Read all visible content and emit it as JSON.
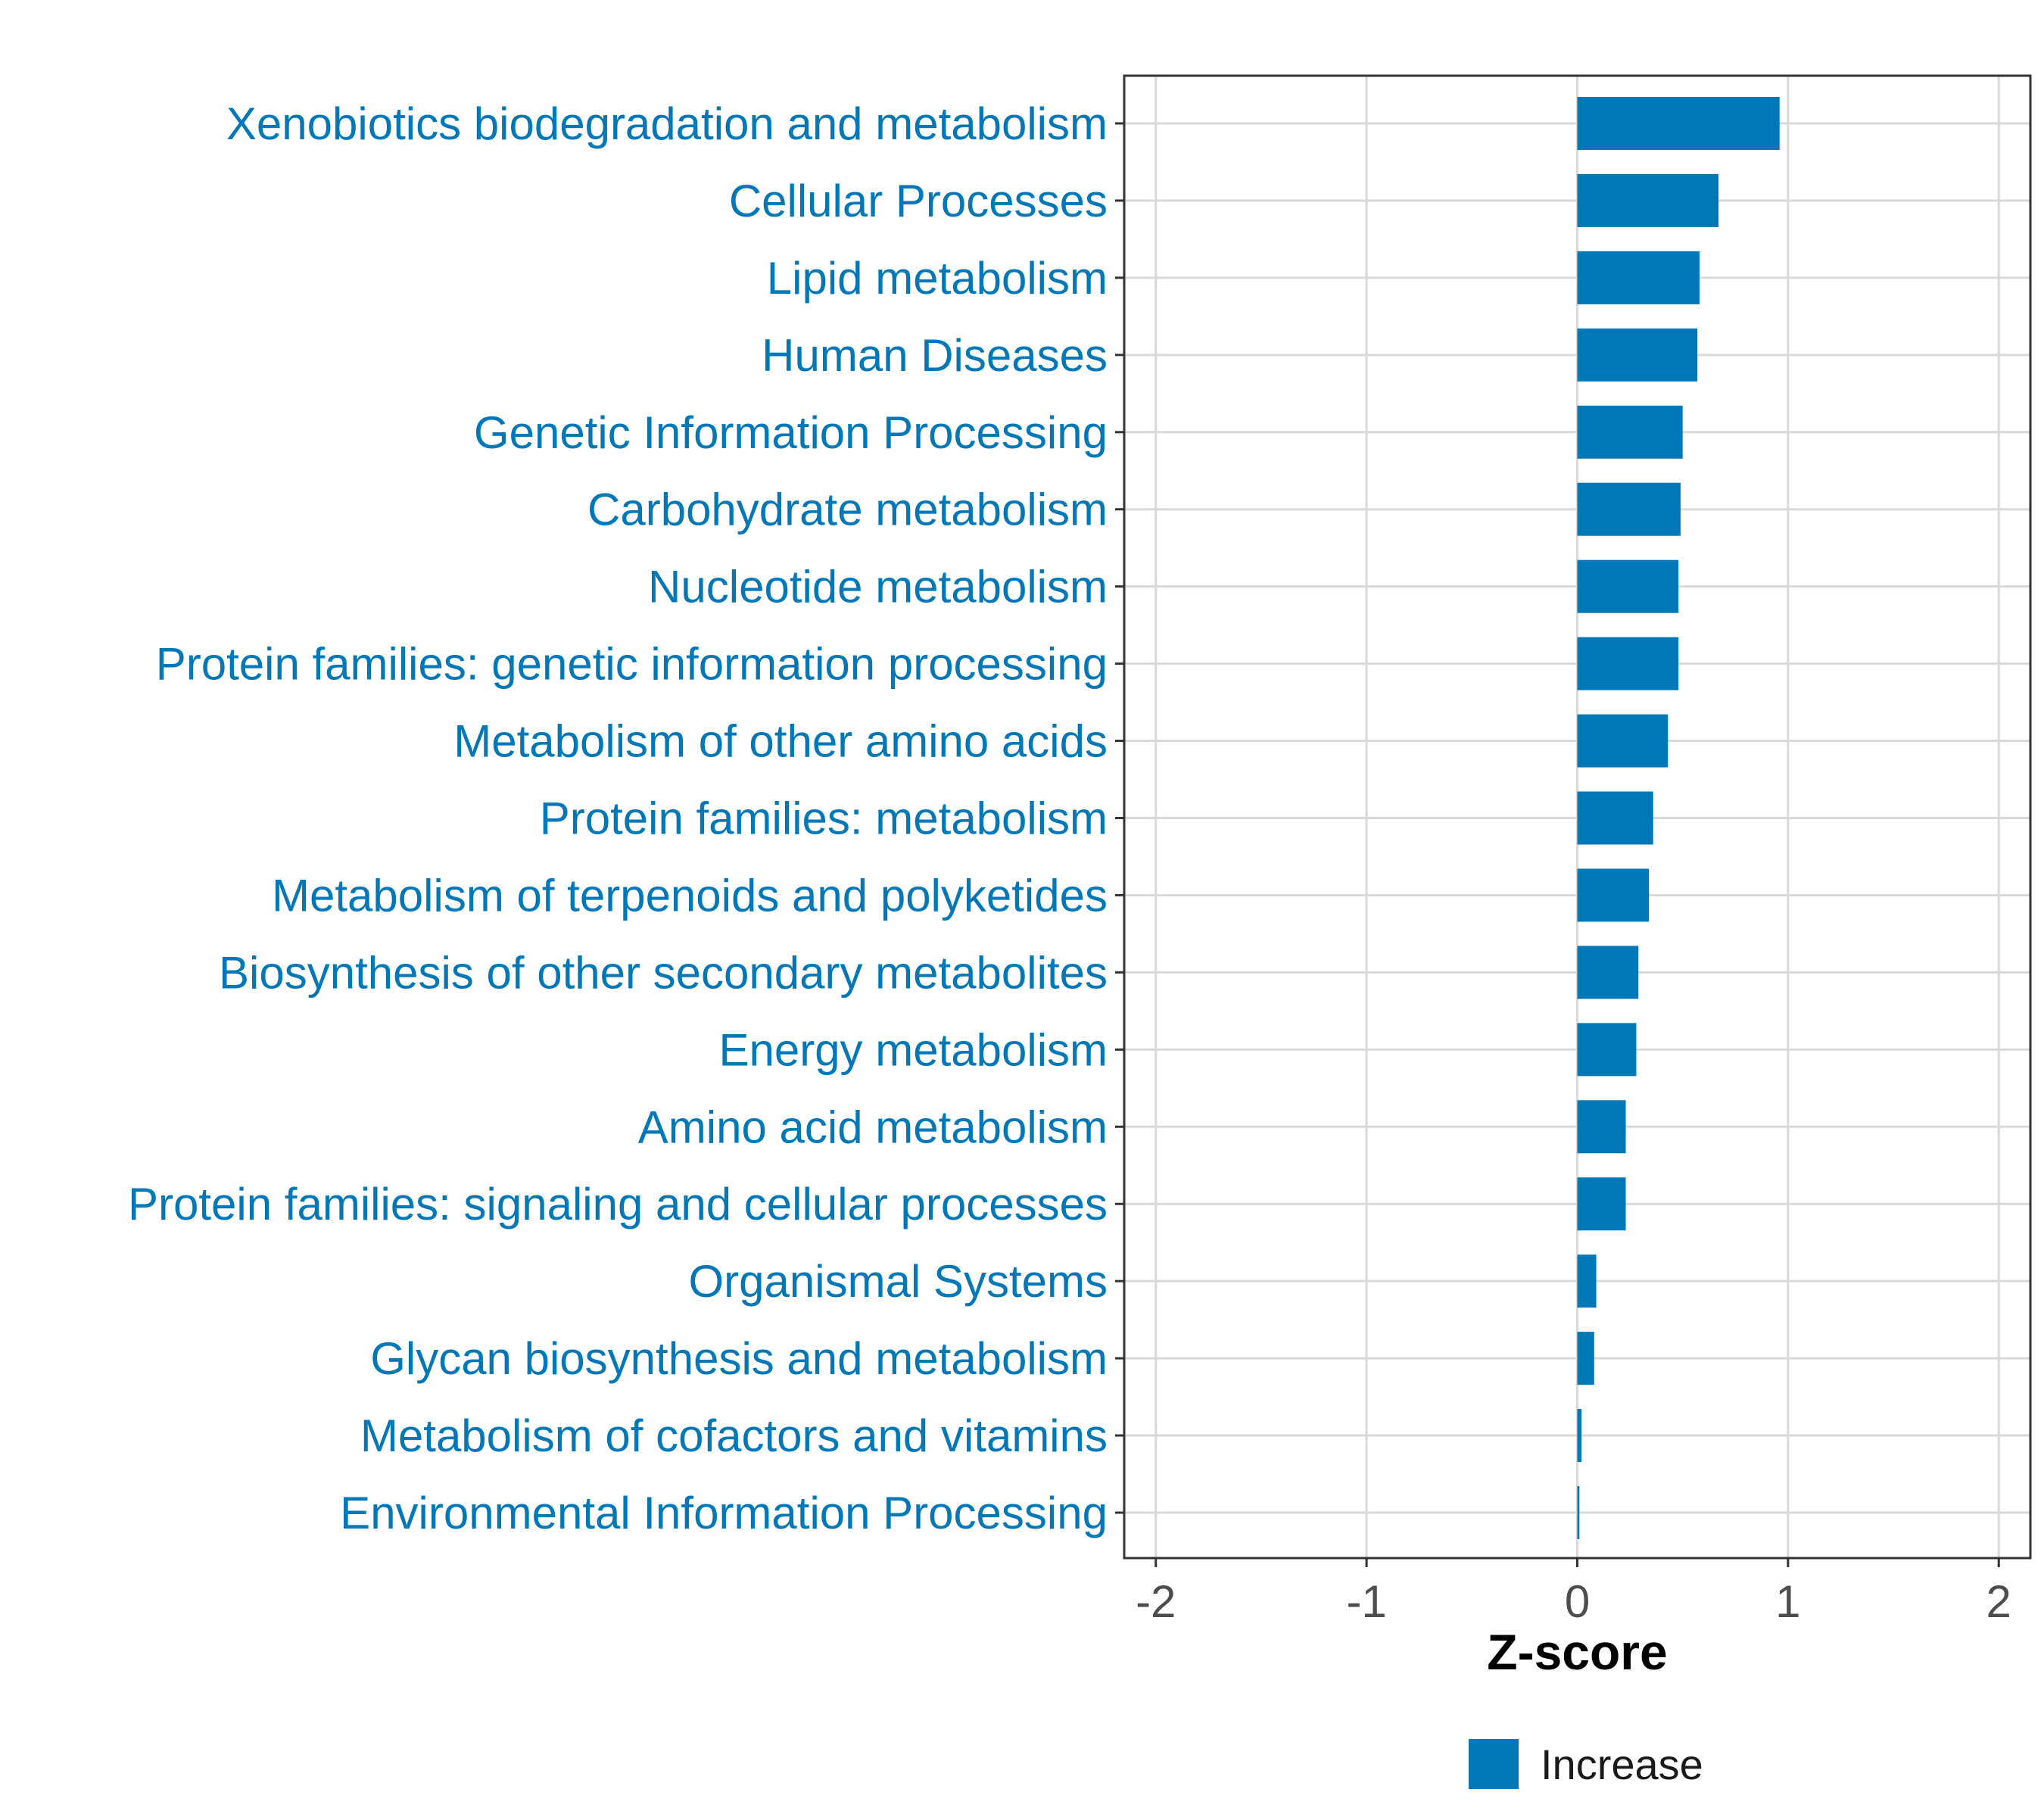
{
  "chart_data": {
    "type": "bar",
    "orientation": "horizontal",
    "categories": [
      "Xenobiotics biodegradation and metabolism",
      "Cellular Processes",
      "Lipid metabolism",
      "Human Diseases",
      "Genetic Information Processing",
      "Carbohydrate metabolism",
      "Nucleotide metabolism",
      "Protein families: genetic information processing",
      "Metabolism of other amino acids",
      "Protein families: metabolism",
      "Metabolism of terpenoids and polyketides",
      "Biosynthesis of other secondary metabolites",
      "Energy metabolism",
      "Amino acid metabolism",
      "Protein families: signaling and cellular processes",
      "Organismal Systems",
      "Glycan biosynthesis and metabolism",
      "Metabolism of cofactors and vitamins",
      "Environmental Information Processing"
    ],
    "series": [
      {
        "name": "Increase",
        "color": "#0077b6",
        "values": [
          0.96,
          0.67,
          0.58,
          0.57,
          0.5,
          0.49,
          0.48,
          0.48,
          0.43,
          0.36,
          0.34,
          0.29,
          0.28,
          0.23,
          0.23,
          0.09,
          0.08,
          0.02,
          0.01
        ]
      }
    ],
    "xlabel": "Z-score",
    "xlim": [
      -2.15,
      2.15
    ],
    "xticks": [
      -2,
      -1,
      0,
      1,
      2
    ],
    "xtick_labels": [
      "-2",
      "-1",
      "0",
      "1",
      "2"
    ],
    "grid": true,
    "legend": {
      "position": "bottom",
      "entries": [
        "Increase"
      ]
    },
    "label_color": "#0077b6"
  }
}
